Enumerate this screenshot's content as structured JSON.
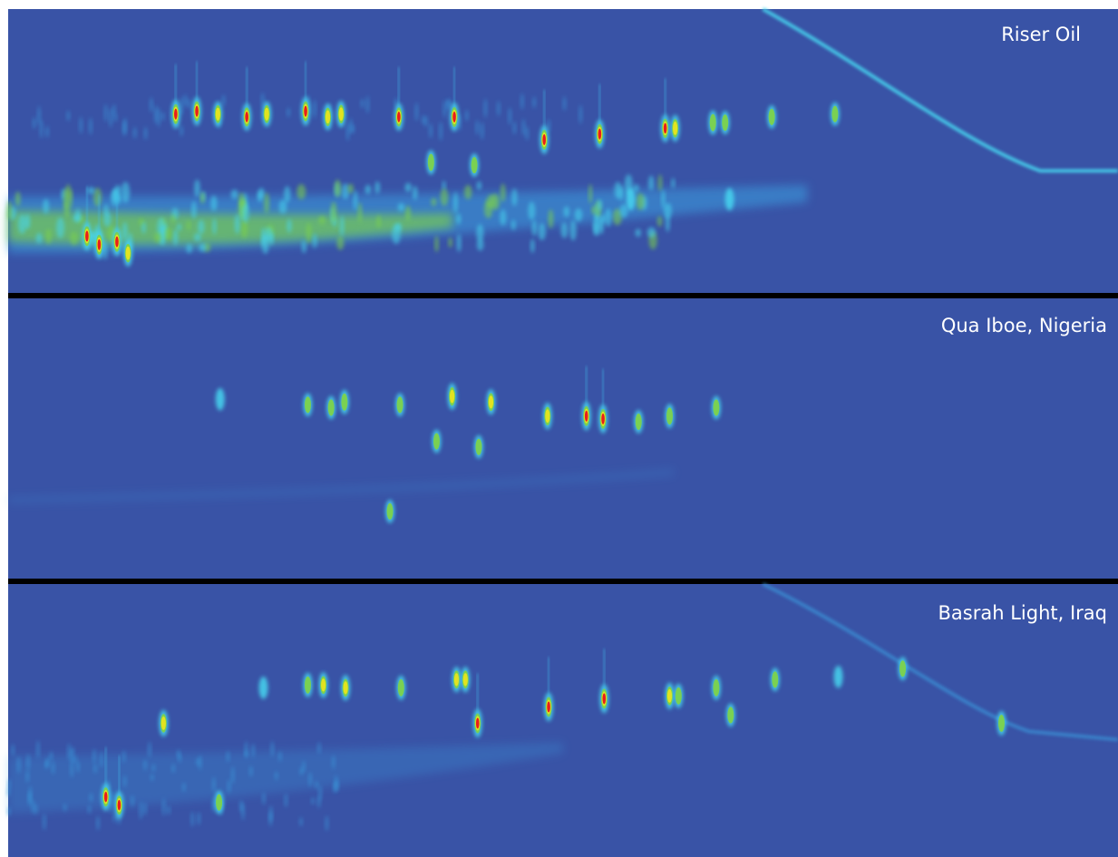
{
  "figure": {
    "background_color": "#3953a6",
    "divider_color": "#000000"
  },
  "chart_data": [
    {
      "type": "heatmap",
      "title": "Riser Oil",
      "colormap": [
        "#3953a6",
        "#3a9fe0",
        "#46d6f0",
        "#7dd24a",
        "#e8e41e",
        "#e81d1c"
      ],
      "peaks": [
        {
          "x": 0.151,
          "y": 0.37,
          "i": 1.0
        },
        {
          "x": 0.17,
          "y": 0.36,
          "i": 1.0
        },
        {
          "x": 0.189,
          "y": 0.37,
          "i": 0.7
        },
        {
          "x": 0.215,
          "y": 0.38,
          "i": 0.9
        },
        {
          "x": 0.233,
          "y": 0.37,
          "i": 0.7
        },
        {
          "x": 0.268,
          "y": 0.36,
          "i": 1.0
        },
        {
          "x": 0.288,
          "y": 0.38,
          "i": 0.8
        },
        {
          "x": 0.3,
          "y": 0.37,
          "i": 0.8
        },
        {
          "x": 0.352,
          "y": 0.38,
          "i": 0.9
        },
        {
          "x": 0.402,
          "y": 0.38,
          "i": 1.0
        },
        {
          "x": 0.483,
          "y": 0.46,
          "i": 1.0
        },
        {
          "x": 0.533,
          "y": 0.44,
          "i": 1.0
        },
        {
          "x": 0.592,
          "y": 0.42,
          "i": 0.9
        },
        {
          "x": 0.601,
          "y": 0.42,
          "i": 0.8
        },
        {
          "x": 0.635,
          "y": 0.4,
          "i": 0.6
        },
        {
          "x": 0.646,
          "y": 0.4,
          "i": 0.5
        },
        {
          "x": 0.688,
          "y": 0.38,
          "i": 0.5
        },
        {
          "x": 0.745,
          "y": 0.37,
          "i": 0.5
        },
        {
          "x": 0.381,
          "y": 0.54,
          "i": 0.6
        },
        {
          "x": 0.42,
          "y": 0.55,
          "i": 0.5
        },
        {
          "x": 0.561,
          "y": 0.67,
          "i": 0.4
        },
        {
          "x": 0.65,
          "y": 0.67,
          "i": 0.4
        },
        {
          "x": 0.071,
          "y": 0.8,
          "i": 1.0
        },
        {
          "x": 0.082,
          "y": 0.83,
          "i": 1.0
        },
        {
          "x": 0.098,
          "y": 0.82,
          "i": 1.0
        },
        {
          "x": 0.108,
          "y": 0.86,
          "i": 0.8
        }
      ]
    },
    {
      "type": "heatmap",
      "title": "Qua Iboe, Nigeria",
      "colormap": [
        "#3953a6",
        "#3a9fe0",
        "#46d6f0",
        "#7dd24a",
        "#e8e41e",
        "#e81d1c"
      ],
      "peaks": [
        {
          "x": 0.191,
          "y": 0.36,
          "i": 0.4
        },
        {
          "x": 0.27,
          "y": 0.38,
          "i": 0.5
        },
        {
          "x": 0.291,
          "y": 0.39,
          "i": 0.5
        },
        {
          "x": 0.303,
          "y": 0.37,
          "i": 0.6
        },
        {
          "x": 0.353,
          "y": 0.38,
          "i": 0.5
        },
        {
          "x": 0.4,
          "y": 0.35,
          "i": 0.8
        },
        {
          "x": 0.435,
          "y": 0.37,
          "i": 0.7
        },
        {
          "x": 0.486,
          "y": 0.42,
          "i": 0.8
        },
        {
          "x": 0.521,
          "y": 0.42,
          "i": 1.0
        },
        {
          "x": 0.536,
          "y": 0.43,
          "i": 1.0
        },
        {
          "x": 0.568,
          "y": 0.44,
          "i": 0.5
        },
        {
          "x": 0.596,
          "y": 0.42,
          "i": 0.6
        },
        {
          "x": 0.638,
          "y": 0.39,
          "i": 0.5
        },
        {
          "x": 0.386,
          "y": 0.51,
          "i": 0.5
        },
        {
          "x": 0.424,
          "y": 0.53,
          "i": 0.5
        },
        {
          "x": 0.344,
          "y": 0.76,
          "i": 0.5
        }
      ]
    },
    {
      "type": "heatmap",
      "title": "Basrah Light, Iraq",
      "colormap": [
        "#3953a6",
        "#3a9fe0",
        "#46d6f0",
        "#7dd24a",
        "#e8e41e",
        "#e81d1c"
      ],
      "peaks": [
        {
          "x": 0.23,
          "y": 0.38,
          "i": 0.4
        },
        {
          "x": 0.27,
          "y": 0.37,
          "i": 0.6
        },
        {
          "x": 0.284,
          "y": 0.37,
          "i": 0.7
        },
        {
          "x": 0.304,
          "y": 0.38,
          "i": 0.7
        },
        {
          "x": 0.354,
          "y": 0.38,
          "i": 0.6
        },
        {
          "x": 0.404,
          "y": 0.35,
          "i": 0.7
        },
        {
          "x": 0.412,
          "y": 0.35,
          "i": 0.7
        },
        {
          "x": 0.423,
          "y": 0.51,
          "i": 1.0
        },
        {
          "x": 0.487,
          "y": 0.45,
          "i": 1.0
        },
        {
          "x": 0.537,
          "y": 0.42,
          "i": 1.0
        },
        {
          "x": 0.596,
          "y": 0.41,
          "i": 0.8
        },
        {
          "x": 0.604,
          "y": 0.41,
          "i": 0.6
        },
        {
          "x": 0.638,
          "y": 0.38,
          "i": 0.6
        },
        {
          "x": 0.651,
          "y": 0.48,
          "i": 0.5
        },
        {
          "x": 0.691,
          "y": 0.35,
          "i": 0.5
        },
        {
          "x": 0.748,
          "y": 0.34,
          "i": 0.4
        },
        {
          "x": 0.806,
          "y": 0.31,
          "i": 0.5
        },
        {
          "x": 0.895,
          "y": 0.51,
          "i": 0.6
        },
        {
          "x": 0.14,
          "y": 0.51,
          "i": 0.8
        },
        {
          "x": 0.088,
          "y": 0.78,
          "i": 0.9
        },
        {
          "x": 0.1,
          "y": 0.81,
          "i": 0.9
        },
        {
          "x": 0.19,
          "y": 0.8,
          "i": 0.5
        }
      ]
    }
  ]
}
